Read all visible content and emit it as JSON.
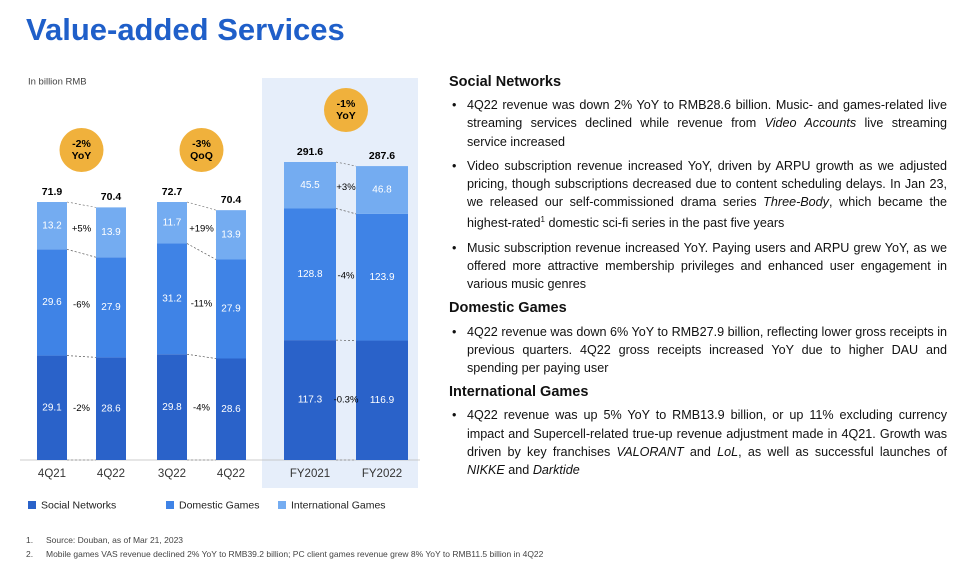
{
  "title": "Value-added Services",
  "unit_note": "In billion RMB",
  "chart_data": {
    "type": "stacked-bar",
    "categories": [
      "4Q21",
      "4Q22",
      "3Q22",
      "4Q22",
      "FY2021",
      "FY2022"
    ],
    "series": [
      {
        "name": "Social Networks",
        "color": "#2a62c9",
        "values": [
          29.1,
          28.6,
          29.8,
          28.6,
          117.3,
          116.9
        ]
      },
      {
        "name": "Domestic Games",
        "color": "#3f83e6",
        "values": [
          29.6,
          27.9,
          31.2,
          27.9,
          128.8,
          123.9
        ]
      },
      {
        "name": "International Games",
        "color": "#74acf1",
        "values": [
          13.2,
          13.9,
          11.7,
          13.9,
          45.5,
          46.8
        ]
      }
    ],
    "totals": [
      71.9,
      70.4,
      72.7,
      70.4,
      291.6,
      287.6
    ],
    "comparisons": [
      {
        "badge": [
          "-2%",
          "YoY"
        ],
        "changes": [
          "-2%",
          "-6%",
          "+5%"
        ]
      },
      {
        "badge": [
          "-3%",
          "QoQ"
        ],
        "changes": [
          "-4%",
          "-11%",
          "+19%"
        ]
      },
      {
        "badge": [
          "-1%",
          "YoY"
        ],
        "changes": [
          "-0.3%",
          "-4%",
          "+3%"
        ]
      }
    ]
  },
  "sections": [
    {
      "heading": "Social Networks",
      "bullets": [
        [
          "4Q22 revenue was down 2% YoY to RMB28.6 billion. Music- and games-related live streaming services declined while revenue from ",
          {
            "italic": "Video Accounts"
          },
          " live streaming service increased"
        ],
        [
          "Video subscription revenue increased YoY, driven by ARPU growth as we adjusted pricing, though subscriptions decreased due to content scheduling delays. In Jan 23, we released our self-commissioned drama series ",
          {
            "italic": "Three-Body"
          },
          ", which became the highest-rated",
          {
            "sup": "1"
          },
          " domestic sci-fi series in the past five years"
        ],
        [
          "Music subscription revenue increased YoY. Paying users and ARPU grew YoY, as we offered more attractive membership privileges and enhanced user engagement in various music genres"
        ]
      ]
    },
    {
      "heading": "Domestic Games",
      "bullets": [
        [
          "4Q22 revenue was down 6% YoY to RMB27.9 billion, reflecting lower gross receipts in previous quarters. 4Q22 gross receipts increased YoY due to higher DAU and spending per paying user"
        ]
      ]
    },
    {
      "heading": "International Games",
      "bullets": [
        [
          "4Q22 revenue was up 5% YoY to RMB13.9 billion, or up 11% excluding currency impact and Supercell-related true-up revenue adjustment made in 4Q21. Growth was driven by key franchises ",
          {
            "italic": "VALORANT"
          },
          " and ",
          {
            "italic": "LoL"
          },
          ", as well as successful launches of ",
          {
            "italic": "NIKKE"
          },
          " and ",
          {
            "italic": "Darktide"
          }
        ]
      ]
    }
  ],
  "footnotes": [
    {
      "marker": "1.",
      "text": "Source: Douban, as of Mar 21, 2023"
    },
    {
      "marker": "2.",
      "text": "Mobile games VAS revenue declined 2% YoY to RMB39.2 billion; PC client games revenue grew 8% YoY to RMB11.5 billion in 4Q22"
    }
  ]
}
